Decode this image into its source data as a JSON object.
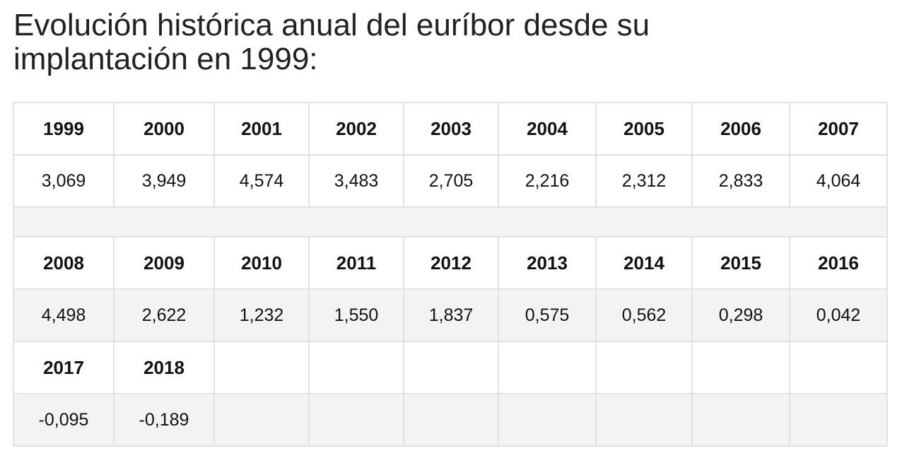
{
  "title": "Evolución histórica anual del euríbor desde su implantación en 1999:",
  "table": {
    "rows": [
      [
        "1999",
        "2000",
        "2001",
        "2002",
        "2003",
        "2004",
        "2005",
        "2006",
        "2007"
      ],
      [
        "3,069",
        "3,949",
        "4,574",
        "3,483",
        "2,705",
        "2,216",
        "2,312",
        "2,833",
        "4,064"
      ],
      [
        "2008",
        "2009",
        "2010",
        "2011",
        "2012",
        "2013",
        "2014",
        "2015",
        "2016"
      ],
      [
        "4,498",
        "2,622",
        "1,232",
        "1,550",
        "1,837",
        "0,575",
        "0,562",
        "0,298",
        "0,042"
      ],
      [
        "2017",
        "2018"
      ],
      [
        "-0,095",
        "-0,189"
      ]
    ]
  }
}
